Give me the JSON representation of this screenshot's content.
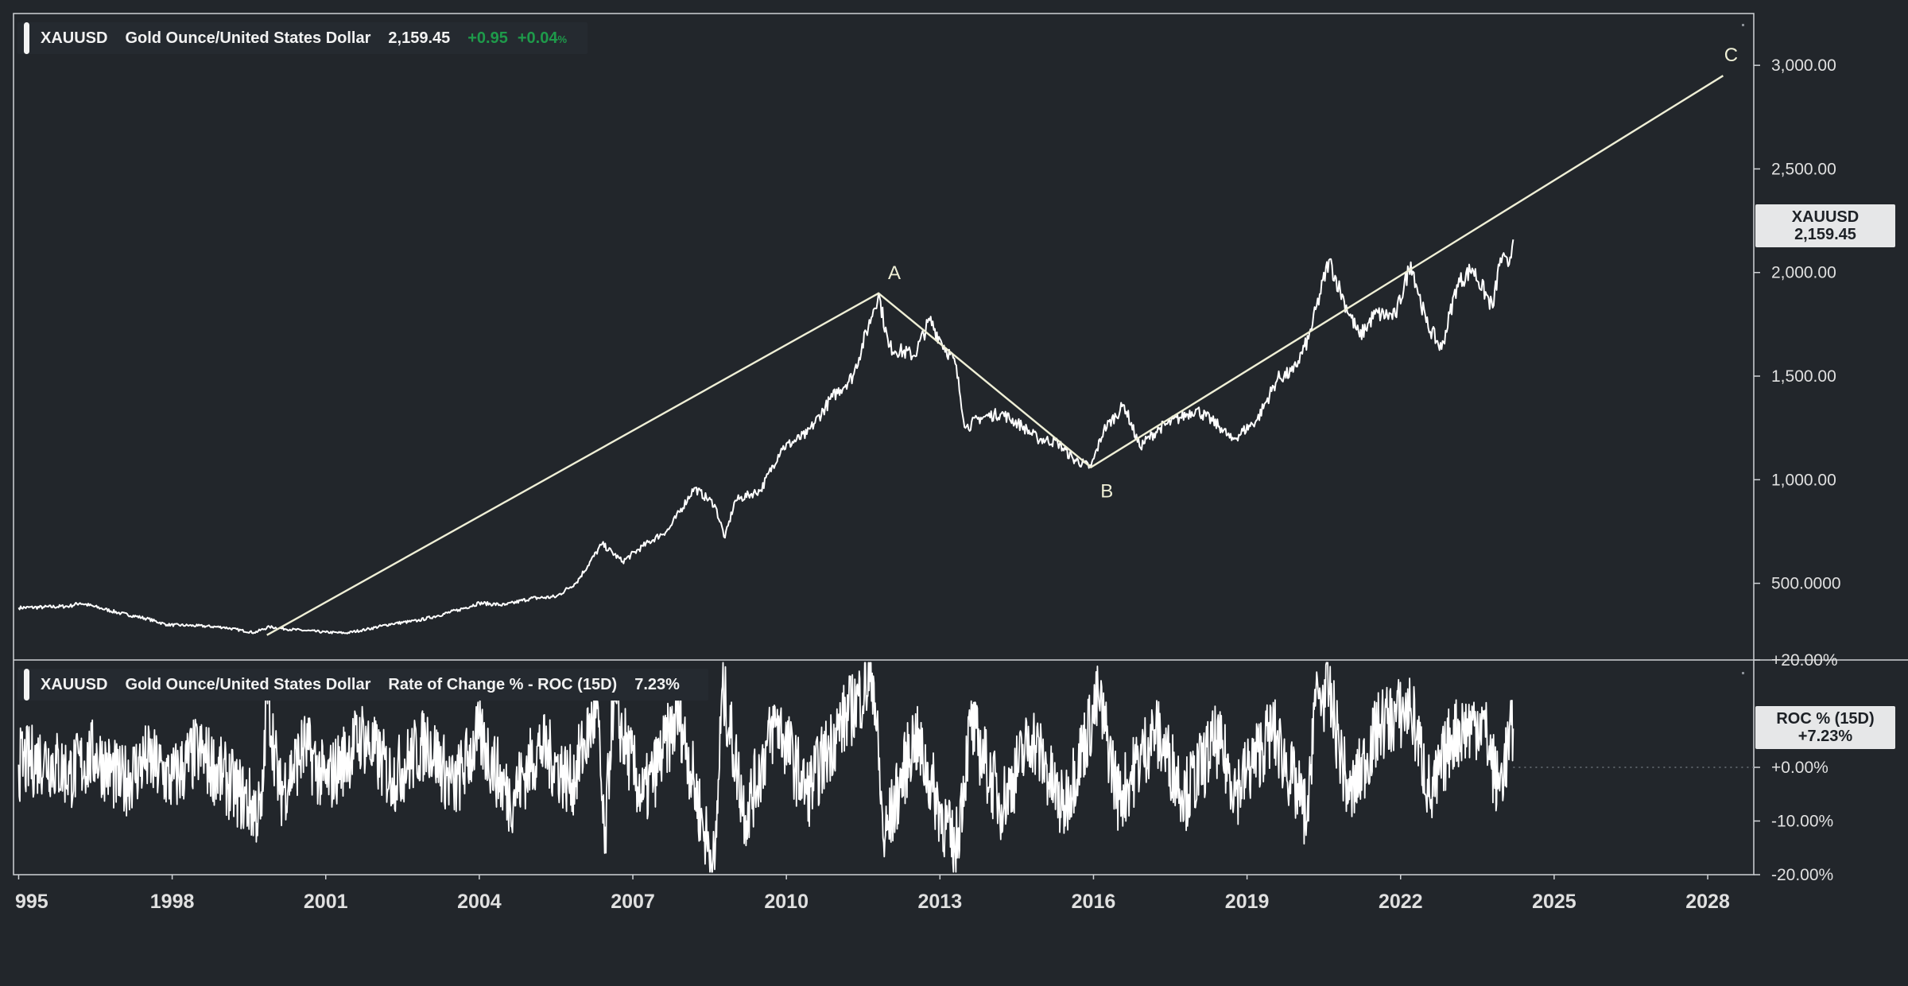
{
  "main_legend": {
    "symbol": "XAUUSD",
    "name": "Gold Ounce/United States Dollar",
    "price": "2,159.45",
    "change": "+0.95",
    "change_pct": "+0.04",
    "change_pct_unit": "%"
  },
  "roc_legend": {
    "symbol": "XAUUSD",
    "name": "Gold Ounce/United States Dollar",
    "indicator": "Rate of Change % - ROC (15D)",
    "value": "7.23%"
  },
  "price_tag": {
    "symbol": "XAUUSD",
    "price": "2,159.45"
  },
  "roc_tag": {
    "label": "ROC % (15D)",
    "value": "+7.23%"
  },
  "colors": {
    "background": "#22262b",
    "line": "#ffffff",
    "drawing": "#efefd6",
    "positive": "#1e9a4a",
    "axis_text": "#e0e0e0"
  },
  "chart_data": [
    {
      "type": "line",
      "series": [
        {
          "points": [
            [
              1995.0,
              382
            ],
            [
              1995.5,
              385
            ],
            [
              1996.0,
              390
            ],
            [
              1996.2,
              405
            ],
            [
              1996.6,
              380
            ],
            [
              1997.0,
              355
            ],
            [
              1997.5,
              330
            ],
            [
              1997.9,
              300
            ],
            [
              1998.5,
              295
            ],
            [
              1999.0,
              288
            ],
            [
              1999.6,
              262
            ],
            [
              1999.9,
              290
            ],
            [
              2000.2,
              280
            ],
            [
              2000.6,
              272
            ],
            [
              2001.0,
              264
            ],
            [
              2001.4,
              260
            ],
            [
              2001.8,
              278
            ],
            [
              2002.3,
              305
            ],
            [
              2002.8,
              320
            ],
            [
              2003.2,
              345
            ],
            [
              2003.6,
              372
            ],
            [
              2004.0,
              405
            ],
            [
              2004.5,
              395
            ],
            [
              2005.0,
              427
            ],
            [
              2005.5,
              435
            ],
            [
              2005.9,
              505
            ],
            [
              2006.4,
              690
            ],
            [
              2006.8,
              605
            ],
            [
              2007.2,
              680
            ],
            [
              2007.7,
              760
            ],
            [
              2008.2,
              960
            ],
            [
              2008.6,
              880
            ],
            [
              2008.8,
              720
            ],
            [
              2009.0,
              900
            ],
            [
              2009.5,
              950
            ],
            [
              2009.9,
              1150
            ],
            [
              2010.4,
              1220
            ],
            [
              2010.9,
              1400
            ],
            [
              2011.3,
              1500
            ],
            [
              2011.7,
              1820
            ],
            [
              2011.8,
              1900
            ],
            [
              2012.0,
              1640
            ],
            [
              2012.5,
              1600
            ],
            [
              2012.8,
              1770
            ],
            [
              2013.0,
              1680
            ],
            [
              2013.3,
              1560
            ],
            [
              2013.5,
              1250
            ],
            [
              2013.8,
              1300
            ],
            [
              2014.2,
              1320
            ],
            [
              2014.6,
              1260
            ],
            [
              2014.9,
              1200
            ],
            [
              2015.3,
              1180
            ],
            [
              2015.6,
              1100
            ],
            [
              2015.95,
              1060
            ],
            [
              2016.2,
              1240
            ],
            [
              2016.6,
              1360
            ],
            [
              2016.9,
              1160
            ],
            [
              2017.3,
              1250
            ],
            [
              2017.7,
              1300
            ],
            [
              2018.0,
              1340
            ],
            [
              2018.5,
              1250
            ],
            [
              2018.7,
              1190
            ],
            [
              2019.2,
              1290
            ],
            [
              2019.6,
              1490
            ],
            [
              2019.9,
              1520
            ],
            [
              2020.2,
              1680
            ],
            [
              2020.6,
              2060
            ],
            [
              2020.9,
              1860
            ],
            [
              2021.2,
              1690
            ],
            [
              2021.5,
              1800
            ],
            [
              2021.9,
              1790
            ],
            [
              2022.2,
              2050
            ],
            [
              2022.5,
              1760
            ],
            [
              2022.8,
              1630
            ],
            [
              2023.1,
              1940
            ],
            [
              2023.4,
              2020
            ],
            [
              2023.8,
              1830
            ],
            [
              2023.95,
              2070
            ],
            [
              2024.1,
              2030
            ],
            [
              2024.2,
              2159.45
            ]
          ]
        }
      ],
      "annotations": [
        {
          "label": "A",
          "at": [
            2011.8,
            1900
          ]
        },
        {
          "label": "B",
          "at": [
            2015.95,
            1060
          ]
        },
        {
          "label": "C",
          "at": [
            2028.3,
            2950
          ]
        }
      ],
      "drawing_lines": [
        [
          [
            1999.85,
            250
          ],
          [
            2011.8,
            1900
          ],
          [
            2015.95,
            1060
          ],
          [
            2028.3,
            2950
          ]
        ]
      ],
      "y_ticks": [
        "3,000.00",
        "2,500.00",
        "2,000.00",
        "1,500.00",
        "1,000.00",
        "500.0000"
      ],
      "y_tick_values": [
        3000,
        2500,
        2000,
        1500,
        1000,
        500
      ],
      "ylim": [
        130,
        3250
      ]
    },
    {
      "type": "line",
      "series": [
        {
          "points": [
            [
              1995.0,
              0.5
            ],
            [
              1995.5,
              1.8
            ],
            [
              1996.0,
              -1.2
            ],
            [
              1996.5,
              2.5
            ],
            [
              1997.0,
              -3.0
            ],
            [
              1997.5,
              1.5
            ],
            [
              1998.0,
              -2.5
            ],
            [
              1998.5,
              3.0
            ],
            [
              1999.0,
              -1.8
            ],
            [
              1999.75,
              -9
            ],
            [
              1999.85,
              15
            ],
            [
              2000.1,
              -5
            ],
            [
              2000.6,
              4
            ],
            [
              2001.0,
              -3
            ],
            [
              2001.7,
              6
            ],
            [
              2002.3,
              -2
            ],
            [
              2003.0,
              5
            ],
            [
              2003.5,
              -4
            ],
            [
              2004.0,
              6
            ],
            [
              2004.6,
              -6
            ],
            [
              2005.2,
              4
            ],
            [
              2005.8,
              -3
            ],
            [
              2006.3,
              11
            ],
            [
              2006.45,
              -16
            ],
            [
              2006.6,
              12
            ],
            [
              2007.2,
              -6
            ],
            [
              2007.9,
              10
            ],
            [
              2008.4,
              -12
            ],
            [
              2008.6,
              -19
            ],
            [
              2008.75,
              15
            ],
            [
              2009.2,
              -9
            ],
            [
              2009.8,
              9
            ],
            [
              2010.4,
              -5
            ],
            [
              2011.0,
              7
            ],
            [
              2011.7,
              17
            ],
            [
              2011.9,
              -14
            ],
            [
              2012.5,
              6
            ],
            [
              2013.3,
              -16
            ],
            [
              2013.6,
              8
            ],
            [
              2014.2,
              -7
            ],
            [
              2014.8,
              6
            ],
            [
              2015.4,
              -8
            ],
            [
              2016.1,
              13
            ],
            [
              2016.5,
              -6
            ],
            [
              2017.2,
              7
            ],
            [
              2017.8,
              -5
            ],
            [
              2018.4,
              5
            ],
            [
              2018.8,
              -4
            ],
            [
              2019.5,
              7
            ],
            [
              2020.2,
              -10
            ],
            [
              2020.3,
              12
            ],
            [
              2020.6,
              14
            ],
            [
              2021.0,
              -6
            ],
            [
              2021.6,
              8
            ],
            [
              2022.2,
              11
            ],
            [
              2022.6,
              -6
            ],
            [
              2023.0,
              6
            ],
            [
              2023.6,
              9
            ],
            [
              2023.9,
              -4
            ],
            [
              2024.2,
              7.23
            ]
          ]
        }
      ],
      "y_ticks": [
        "+20.00%",
        "+0.00%",
        "-10.00%",
        "-20.00%"
      ],
      "y_tick_values": [
        20,
        0,
        -10,
        -20
      ],
      "ylim": [
        -20,
        20
      ]
    }
  ],
  "x_axis": {
    "labels": [
      "995",
      "1998",
      "2001",
      "2004",
      "2007",
      "2010",
      "2013",
      "2016",
      "2019",
      "2022",
      "2025",
      "2028"
    ],
    "values": [
      1995,
      1998,
      2001,
      2004,
      2007,
      2010,
      2013,
      2016,
      2019,
      2022,
      2025,
      2028
    ],
    "range": [
      1994.9,
      2028.9
    ]
  }
}
